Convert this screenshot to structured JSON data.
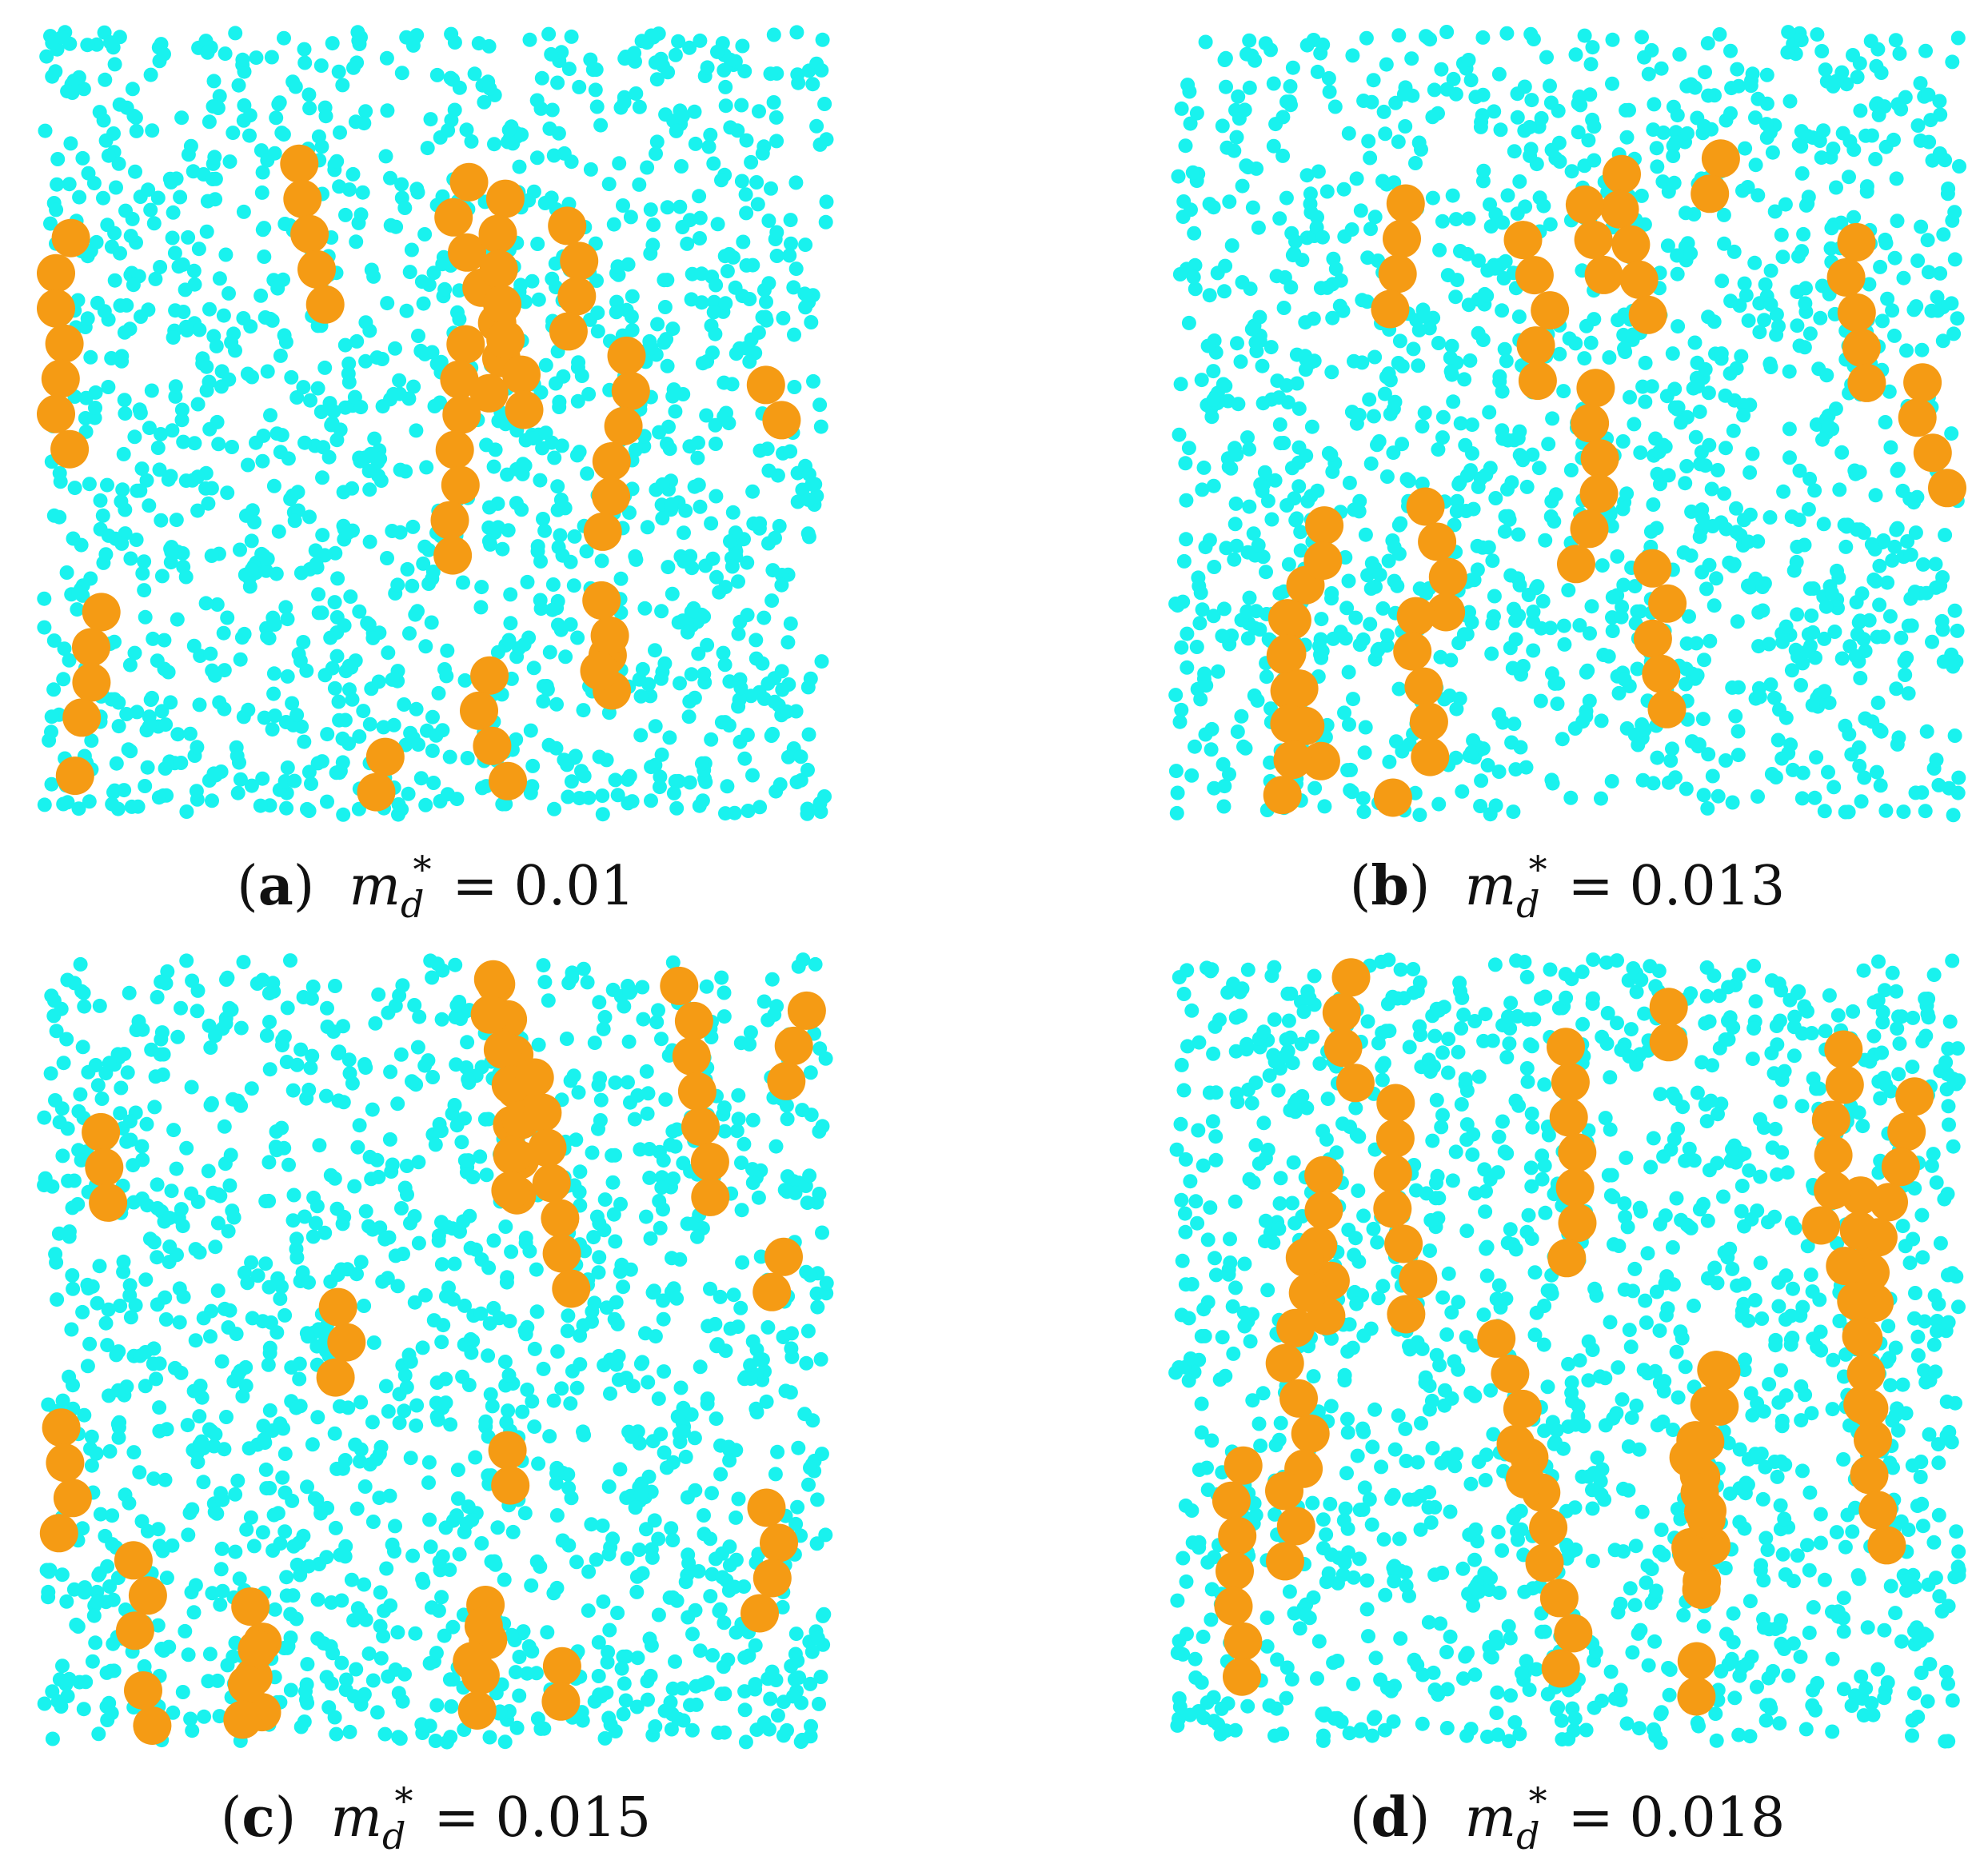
{
  "colors": {
    "small_particle": "#19f2ee",
    "large_particle": "#f59b14",
    "background": "#ffffff"
  },
  "panels": [
    {
      "letter": "a",
      "variable": "m",
      "subscript": "d",
      "superscript": "*",
      "equals": "=",
      "value": "0.01",
      "seed": 11
    },
    {
      "letter": "b",
      "variable": "m",
      "subscript": "d",
      "superscript": "*",
      "equals": "=",
      "value": "0.013",
      "seed": 23
    },
    {
      "letter": "c",
      "variable": "m",
      "subscript": "d",
      "superscript": "*",
      "equals": "=",
      "value": "0.015",
      "seed": 37
    },
    {
      "letter": "d",
      "variable": "m",
      "subscript": "d",
      "superscript": "*",
      "equals": "=",
      "value": "0.018",
      "seed": 51
    }
  ]
}
